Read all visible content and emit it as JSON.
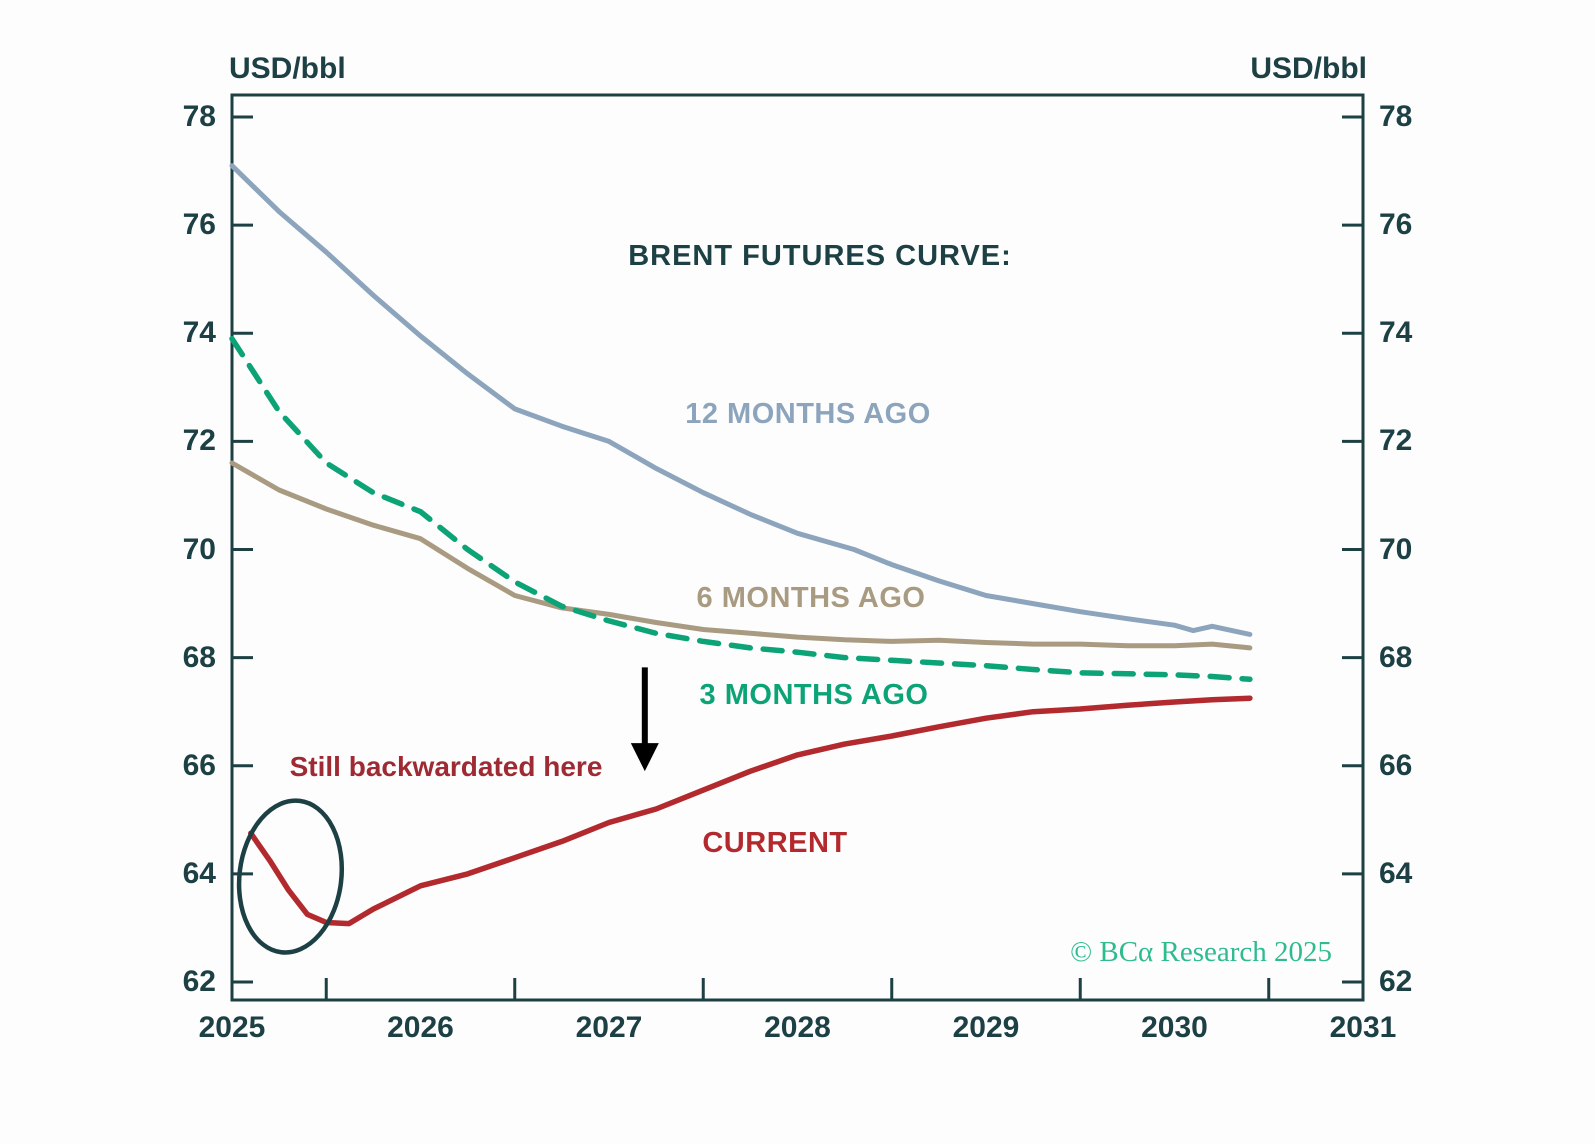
{
  "chart_data": {
    "type": "line",
    "title": "BRENT FUTURES CURVE:",
    "ylabel_left": "USD/bbl",
    "ylabel_right": "USD/bbl",
    "copyright": "© BCα Research 2025",
    "x_range": [
      2025,
      2031
    ],
    "y_range": [
      62,
      78
    ],
    "y_ticks": [
      78,
      76,
      74,
      72,
      70,
      68,
      66,
      64,
      62
    ],
    "x_tick_labels": [
      "2025",
      "2026",
      "2027",
      "2028",
      "2029",
      "2030",
      "2031"
    ],
    "x_minor_ticks": [
      2025.5,
      2026.5,
      2027.5,
      2028.5,
      2029.5,
      2030.5
    ],
    "grid": false,
    "axis_color": "#1d4044",
    "legend_position": "inline-labels",
    "series": [
      {
        "name": "12 MONTHS AGO",
        "color": "#8ca4bc",
        "style": "solid",
        "width": 5,
        "x": [
          2025.0,
          2025.25,
          2025.5,
          2025.75,
          2026.0,
          2026.25,
          2026.5,
          2026.75,
          2027.0,
          2027.25,
          2027.5,
          2027.75,
          2028.0,
          2028.3,
          2028.5,
          2028.75,
          2029.0,
          2029.25,
          2029.5,
          2029.75,
          2030.0,
          2030.1,
          2030.2,
          2030.4
        ],
        "y": [
          77.1,
          76.25,
          75.5,
          74.7,
          73.95,
          73.25,
          72.6,
          72.28,
          72.0,
          71.5,
          71.05,
          70.65,
          70.3,
          70.0,
          69.72,
          69.42,
          69.15,
          69.0,
          68.85,
          68.72,
          68.6,
          68.5,
          68.58,
          68.43
        ]
      },
      {
        "name": "6 MONTHS AGO",
        "color": "#a89b81",
        "style": "solid",
        "width": 5,
        "x": [
          2025.0,
          2025.25,
          2025.5,
          2025.75,
          2026.0,
          2026.25,
          2026.5,
          2026.75,
          2027.0,
          2027.25,
          2027.5,
          2027.75,
          2028.0,
          2028.25,
          2028.5,
          2028.75,
          2029.0,
          2029.25,
          2029.5,
          2029.75,
          2030.0,
          2030.2,
          2030.4
        ],
        "y": [
          71.6,
          71.1,
          70.75,
          70.45,
          70.2,
          69.65,
          69.15,
          68.92,
          68.8,
          68.65,
          68.52,
          68.45,
          68.38,
          68.33,
          68.3,
          68.32,
          68.28,
          68.25,
          68.25,
          68.22,
          68.22,
          68.25,
          68.18
        ]
      },
      {
        "name": "3 MONTHS AGO",
        "color": "#0ca376",
        "style": "dashed",
        "width": 5.5,
        "x": [
          2025.0,
          2025.25,
          2025.5,
          2025.75,
          2026.0,
          2026.25,
          2026.5,
          2026.75,
          2027.0,
          2027.25,
          2027.5,
          2027.75,
          2028.0,
          2028.25,
          2028.5,
          2028.75,
          2029.0,
          2029.25,
          2029.5,
          2029.75,
          2030.0,
          2030.2,
          2030.4
        ],
        "y": [
          73.9,
          72.55,
          71.6,
          71.05,
          70.7,
          70.0,
          69.4,
          68.95,
          68.68,
          68.45,
          68.3,
          68.18,
          68.1,
          68.0,
          67.95,
          67.9,
          67.85,
          67.78,
          67.72,
          67.7,
          67.68,
          67.65,
          67.6
        ]
      },
      {
        "name": "CURRENT",
        "color": "#b32a2e",
        "style": "solid",
        "width": 5.5,
        "x": [
          2025.1,
          2025.2,
          2025.3,
          2025.4,
          2025.5,
          2025.62,
          2025.75,
          2026.0,
          2026.25,
          2026.5,
          2026.75,
          2027.0,
          2027.25,
          2027.5,
          2027.75,
          2028.0,
          2028.25,
          2028.5,
          2028.75,
          2029.0,
          2029.25,
          2029.5,
          2029.75,
          2030.0,
          2030.2,
          2030.4
        ],
        "y": [
          64.75,
          64.25,
          63.7,
          63.25,
          63.1,
          63.08,
          63.35,
          63.78,
          64.0,
          64.3,
          64.6,
          64.95,
          65.2,
          65.55,
          65.9,
          66.2,
          66.4,
          66.55,
          66.72,
          66.88,
          67.0,
          67.05,
          67.12,
          67.18,
          67.22,
          67.25
        ]
      }
    ],
    "annotations": {
      "note_text": "Still backwardated here",
      "note_color": "#9e2a33",
      "ellipse": {
        "cx": 2025.31,
        "cy": 63.95,
        "rx_years": 0.27,
        "ry_units": 1.41,
        "rotate_deg": 7,
        "color": "#1d4044",
        "stroke_width": 4.5
      },
      "arrow": {
        "x": 2027.19,
        "y_tail": 67.82,
        "y_tip": 65.9,
        "color": "#000000"
      }
    }
  }
}
